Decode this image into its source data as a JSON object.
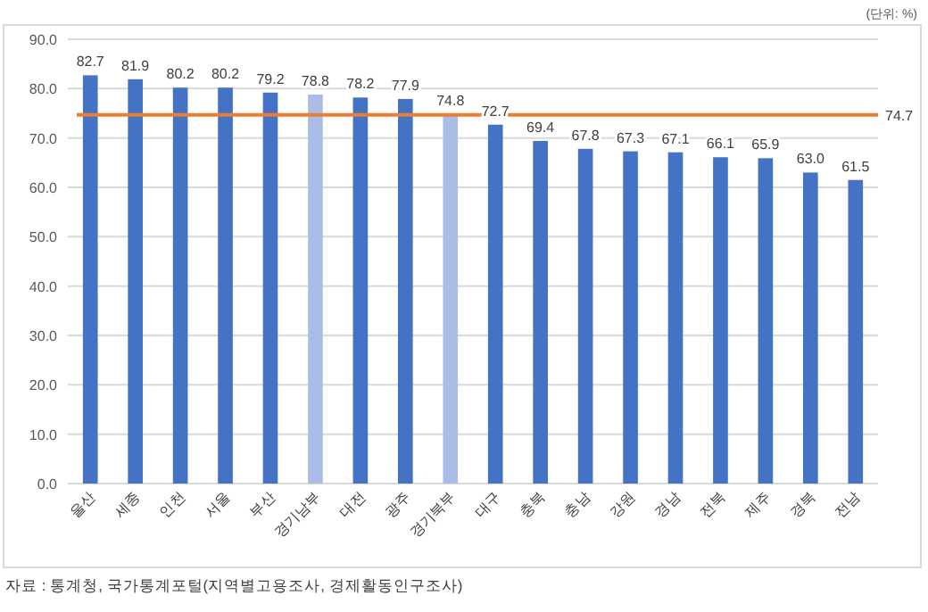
{
  "chart_data": {
    "type": "bar",
    "categories": [
      "울산",
      "세종",
      "인천",
      "서울",
      "부산",
      "경기남부",
      "대전",
      "광주",
      "경기북부",
      "대구",
      "충북",
      "충남",
      "강원",
      "경남",
      "전북",
      "제주",
      "경북",
      "전남"
    ],
    "values": [
      82.7,
      81.9,
      80.2,
      80.2,
      79.2,
      78.8,
      78.2,
      77.9,
      74.8,
      72.7,
      69.4,
      67.8,
      67.3,
      67.1,
      66.1,
      65.9,
      63.0,
      61.5
    ],
    "value_labels": [
      "82.7",
      "81.9",
      "80.2",
      "80.2",
      "79.2",
      "78.8",
      "78.2",
      "77.9",
      "74.8",
      "72.7",
      "69.4",
      "67.8",
      "67.3",
      "67.1",
      "66.1",
      "65.9",
      "63.0",
      "61.5"
    ],
    "colors": [
      "#4472c4",
      "#4472c4",
      "#4472c4",
      "#4472c4",
      "#4472c4",
      "#a9bde6",
      "#4472c4",
      "#4472c4",
      "#a9bde6",
      "#4472c4",
      "#4472c4",
      "#4472c4",
      "#4472c4",
      "#4472c4",
      "#4472c4",
      "#4472c4",
      "#4472c4",
      "#4472c4"
    ],
    "ylim": [
      0,
      90
    ],
    "yticks": [
      {
        "value": 0,
        "label": "0.0"
      },
      {
        "value": 10,
        "label": "10.0"
      },
      {
        "value": 20,
        "label": "20.0"
      },
      {
        "value": 30,
        "label": "30.0"
      },
      {
        "value": 40,
        "label": "40.0"
      },
      {
        "value": 50,
        "label": "50.0"
      },
      {
        "value": 60,
        "label": "60.0"
      },
      {
        "value": 70,
        "label": "70.0"
      },
      {
        "value": 80,
        "label": "80.0"
      },
      {
        "value": 90,
        "label": "90.0"
      }
    ],
    "grid": "y",
    "ref_lines": [
      {
        "axis": "y",
        "value": 74.7,
        "label": "74.7",
        "color": "#ed7d31"
      }
    ],
    "annotations": [
      "(단위: %)",
      "자료 : 통계청, 국가통계포털(지역별고용조사, 경제활동인구조사)"
    ]
  }
}
